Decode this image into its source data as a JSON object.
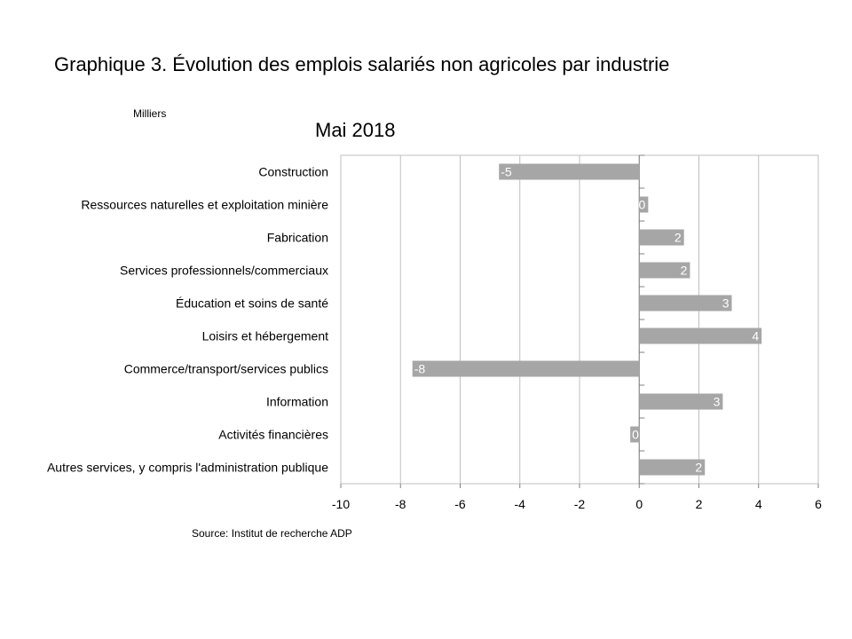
{
  "title": "Graphique 3. Évolution des emplois salariés non agricoles par industrie",
  "subtitle": "Mai 2018",
  "unit": "Milliers",
  "source": "Source: Institut de recherche ADP",
  "colors": {
    "bar": "#a6a6a6",
    "grid": "#bfbfbf",
    "axis": "#808080",
    "label": "#ffffff"
  },
  "chart_data": {
    "type": "bar",
    "orientation": "horizontal",
    "title": "Mai 2018",
    "xlabel": "",
    "ylabel": "Milliers",
    "xlim": [
      -10,
      6
    ],
    "x_ticks": [
      -10,
      -8,
      -6,
      -4,
      -2,
      0,
      2,
      4,
      6
    ],
    "grid": true,
    "categories": [
      "Construction",
      "Ressources naturelles et exploitation minière",
      "Fabrication",
      "Services professionnels/commerciaux",
      "Éducation et soins de santé",
      "Loisirs et hébergement",
      "Commerce/transport/services publics",
      "Information",
      "Activités financières",
      "Autres services, y compris l'administration publique"
    ],
    "values": [
      -4.7,
      0.3,
      1.5,
      1.7,
      3.1,
      4.1,
      -7.6,
      2.8,
      -0.3,
      2.2
    ],
    "data_labels": [
      "-5",
      "0",
      "2",
      "2",
      "3",
      "4",
      "-8",
      "3",
      "0",
      "2"
    ]
  }
}
